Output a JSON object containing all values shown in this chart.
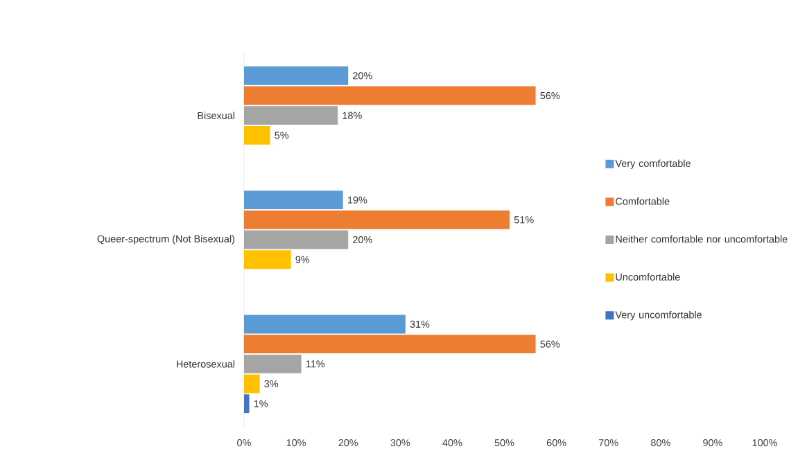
{
  "chart_data": {
    "type": "bar",
    "orientation": "horizontal",
    "categories": [
      "Bisexual",
      "Queer-spectrum (Not Bisexual)",
      "Heterosexual"
    ],
    "series": [
      {
        "name": "Very comfortable",
        "color": "#5b9bd5",
        "values": [
          20,
          19,
          31
        ],
        "value_labels": [
          "20%",
          "19%",
          "31%"
        ]
      },
      {
        "name": "Comfortable",
        "color": "#ed7d31",
        "values": [
          56,
          51,
          56
        ],
        "value_labels": [
          "56%",
          "51%",
          "56%"
        ]
      },
      {
        "name": "Neither comfortable nor uncomfortable",
        "color": "#a5a5a5",
        "values": [
          18,
          20,
          11
        ],
        "value_labels": [
          "18%",
          "20%",
          "11%"
        ]
      },
      {
        "name": "Uncomfortable",
        "color": "#ffc000",
        "values": [
          5,
          9,
          3
        ],
        "value_labels": [
          "5%",
          "9%",
          "3%"
        ]
      },
      {
        "name": "Very uncomfortable",
        "color": "#4472c4",
        "values": [
          null,
          null,
          1
        ],
        "value_labels": [
          null,
          null,
          "1%"
        ]
      }
    ],
    "xlim": [
      0,
      100
    ],
    "xticks": [
      {
        "value": 0,
        "label": "0%"
      },
      {
        "value": 10,
        "label": "10%"
      },
      {
        "value": 20,
        "label": "20%"
      },
      {
        "value": 30,
        "label": "30%"
      },
      {
        "value": 40,
        "label": "40%"
      },
      {
        "value": 50,
        "label": "50%"
      },
      {
        "value": 60,
        "label": "60%"
      },
      {
        "value": 70,
        "label": "70%"
      },
      {
        "value": 80,
        "label": "80%"
      },
      {
        "value": 90,
        "label": "90%"
      },
      {
        "value": 100,
        "label": "100%"
      }
    ],
    "grid": false,
    "legend": "right"
  }
}
